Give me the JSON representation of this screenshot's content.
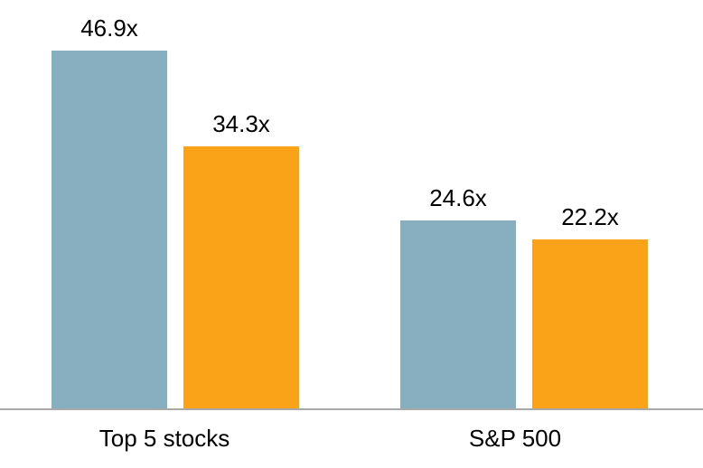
{
  "chart_data": {
    "type": "bar",
    "categories": [
      "Top 5 stocks",
      "S&P 500"
    ],
    "series": [
      {
        "name": "blue",
        "color": "#88AFC0",
        "values": [
          46.9,
          24.6
        ],
        "labels": [
          "46.9x",
          "24.6x"
        ]
      },
      {
        "name": "orange",
        "color": "#FAA319",
        "values": [
          34.3,
          22.2
        ],
        "labels": [
          "34.3x",
          "22.2x"
        ]
      }
    ],
    "title": "",
    "xlabel": "",
    "ylabel": "",
    "ylim": [
      0,
      50
    ],
    "grid": false,
    "legend": "none",
    "axis_line_color": "#A9A9A9",
    "label_color": "#000000",
    "background": "#FFFFFF"
  }
}
